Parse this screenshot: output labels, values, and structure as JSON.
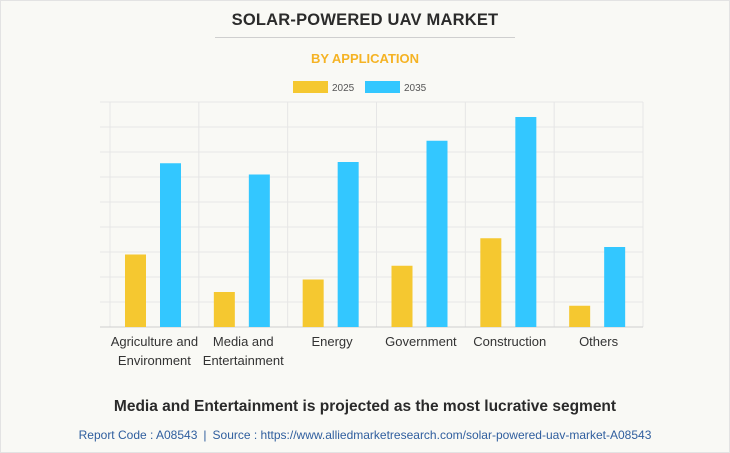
{
  "header": {
    "title": "SOLAR-POWERED UAV MARKET",
    "subtitle": "BY APPLICATION"
  },
  "chart_data": {
    "type": "bar",
    "title": "SOLAR-POWERED UAV MARKET",
    "subtitle": "BY APPLICATION",
    "categories": [
      "Agriculture and Environment",
      "Media and Entertainment",
      "Energy",
      "Government",
      "Construction",
      "Others"
    ],
    "category_lines": [
      [
        "Agriculture and",
        "Environment"
      ],
      [
        "Media and",
        "Entertainment"
      ],
      [
        "Energy"
      ],
      [
        "Government"
      ],
      [
        "Construction"
      ],
      [
        "Others"
      ]
    ],
    "series": [
      {
        "name": "2025",
        "color": "#f5c830",
        "values": [
          2.9,
          1.4,
          1.9,
          2.45,
          3.55,
          0.85
        ]
      },
      {
        "name": "2035",
        "color": "#33c7ff",
        "values": [
          6.55,
          6.1,
          6.6,
          7.45,
          8.4,
          3.2
        ]
      }
    ],
    "ylim": [
      0,
      9
    ],
    "y_gridlines": 9,
    "grid": true,
    "legend_position": "top-center",
    "xlabel": "",
    "ylabel": ""
  },
  "headline": "Media and Entertainment is projected as the most lucrative segment",
  "footer": {
    "report_code": "Report Code : A08543",
    "separator": "|",
    "source": "Source : https://www.alliedmarketresearch.com/solar-powered-uav-market-A08543"
  }
}
